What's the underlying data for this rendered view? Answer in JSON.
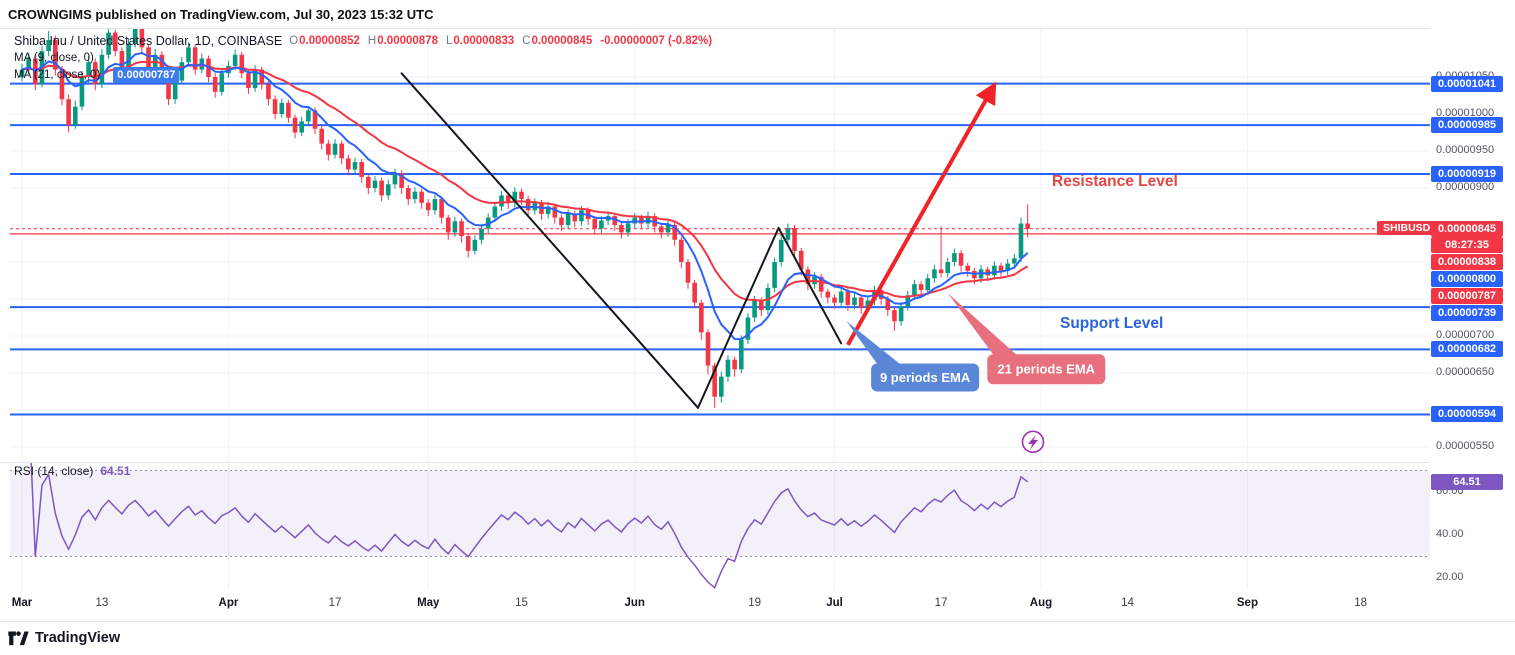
{
  "header": {
    "published_line": "CROWNGIMS published on TradingView.com, Jul 30, 2023 15:32 UTC",
    "symbol_line": {
      "title": "Shiba Inu / United States Dollar, 1D, COINBASE"
    },
    "ohlc": {
      "o_label": "O",
      "o": "0.00000852",
      "h_label": "H",
      "h": "0.00000878",
      "l_label": "L",
      "l": "0.00000833",
      "c_label": "C",
      "c": "0.00000845",
      "change": "-0.00000007 (-0.82%)"
    },
    "indicators": [
      {
        "label": "MA (9, close, 0)",
        "value": ""
      },
      {
        "label": "MA (21, close, 0)",
        "value": "0.00000787"
      }
    ]
  },
  "price_axis": {
    "currency_button": "USD",
    "plain_labels": [
      {
        "text": "0.00001050",
        "price": 1050
      },
      {
        "text": "0.00001000",
        "price": 1000
      },
      {
        "text": "0.00000950",
        "price": 950
      },
      {
        "text": "0.00000900",
        "price": 900
      },
      {
        "text": "0.00000700",
        "price": 700
      },
      {
        "text": "0.00000650",
        "price": 650
      },
      {
        "text": "0.00000550",
        "price": 550
      }
    ],
    "badges": [
      {
        "text": "0.00001041",
        "price": 1041,
        "color": "blue"
      },
      {
        "text": "0.00000985",
        "price": 985,
        "color": "blue"
      },
      {
        "text": "0.00000919",
        "price": 919,
        "color": "blue"
      },
      {
        "text": "0.00000838",
        "price": 838,
        "color": "red"
      },
      {
        "text": "0.00000800",
        "price": 800,
        "color": "blue"
      },
      {
        "text": "0.00000787",
        "price": 787,
        "color": "red"
      },
      {
        "text": "0.00000739",
        "price": 739,
        "color": "blue"
      },
      {
        "text": "0.00000682",
        "price": 682,
        "color": "blue"
      },
      {
        "text": "0.00000594",
        "price": 594,
        "color": "blue"
      }
    ],
    "last_price": {
      "tag": "SHIBUSD",
      "text": "0.00000845",
      "countdown": "08:27:35"
    }
  },
  "time_axis": {
    "labels": [
      {
        "text": "Mar",
        "index": 0,
        "major": true
      },
      {
        "text": "13",
        "index": 12
      },
      {
        "text": "Apr",
        "index": 31,
        "major": true
      },
      {
        "text": "17",
        "index": 47
      },
      {
        "text": "May",
        "index": 61,
        "major": true
      },
      {
        "text": "15",
        "index": 75
      },
      {
        "text": "Jun",
        "index": 92,
        "major": true
      },
      {
        "text": "19",
        "index": 110
      },
      {
        "text": "Jul",
        "index": 122,
        "major": true
      },
      {
        "text": "17",
        "index": 138
      },
      {
        "text": "Aug",
        "index": 153,
        "major": true
      },
      {
        "text": "14",
        "index": 166
      },
      {
        "text": "Sep",
        "index": 184,
        "major": true
      },
      {
        "text": "18",
        "index": 201
      }
    ]
  },
  "chart_data": {
    "type": "candlestick",
    "symbol": "SHIBUSD",
    "timeframe": "1D",
    "exchange": "COINBASE",
    "price_unit": "values are USD x 1e-8",
    "ylim_e8": [
      532,
      1116
    ],
    "grid_prices": [
      1050,
      1000,
      950,
      900,
      850,
      800,
      750,
      700,
      650,
      600,
      550
    ],
    "month_grid_indices": [
      0,
      31,
      61,
      92,
      122,
      153,
      184
    ],
    "levels_blue": [
      1041,
      985,
      919,
      739,
      682,
      594
    ],
    "red_level": 838,
    "last_price": 845,
    "candles": [
      [
        1050,
        1068,
        1044,
        1060
      ],
      [
        1060,
        1082,
        1054,
        1075
      ],
      [
        1075,
        1080,
        1032,
        1040
      ],
      [
        1040,
        1092,
        1036,
        1085
      ],
      [
        1085,
        1112,
        1078,
        1100
      ],
      [
        1100,
        1106,
        1052,
        1060
      ],
      [
        1060,
        1065,
        1012,
        1020
      ],
      [
        1020,
        1026,
        975,
        985
      ],
      [
        985,
        1018,
        980,
        1010
      ],
      [
        1010,
        1058,
        1005,
        1050
      ],
      [
        1050,
        1078,
        1042,
        1070
      ],
      [
        1070,
        1075,
        1032,
        1040
      ],
      [
        1040,
        1088,
        1035,
        1080
      ],
      [
        1080,
        1118,
        1074,
        1110
      ],
      [
        1110,
        1114,
        1078,
        1085
      ],
      [
        1085,
        1090,
        1052,
        1060
      ],
      [
        1060,
        1102,
        1055,
        1095
      ],
      [
        1095,
        1122,
        1090,
        1115
      ],
      [
        1115,
        1119,
        1082,
        1090
      ],
      [
        1090,
        1094,
        1052,
        1060
      ],
      [
        1060,
        1088,
        1054,
        1080
      ],
      [
        1080,
        1085,
        1042,
        1050
      ],
      [
        1050,
        1056,
        1012,
        1020
      ],
      [
        1020,
        1052,
        1014,
        1045
      ],
      [
        1045,
        1077,
        1040,
        1070
      ],
      [
        1070,
        1097,
        1064,
        1090
      ],
      [
        1090,
        1094,
        1053,
        1060
      ],
      [
        1060,
        1082,
        1055,
        1075
      ],
      [
        1075,
        1079,
        1043,
        1050
      ],
      [
        1050,
        1055,
        1022,
        1030
      ],
      [
        1030,
        1062,
        1025,
        1055
      ],
      [
        1055,
        1072,
        1049,
        1065
      ],
      [
        1065,
        1087,
        1059,
        1080
      ],
      [
        1080,
        1084,
        1048,
        1055
      ],
      [
        1055,
        1060,
        1027,
        1035
      ],
      [
        1035,
        1066,
        1030,
        1060
      ],
      [
        1060,
        1064,
        1033,
        1040
      ],
      [
        1040,
        1045,
        1012,
        1020
      ],
      [
        1020,
        1025,
        993,
        1000
      ],
      [
        1000,
        1021,
        995,
        1015
      ],
      [
        1015,
        1019,
        988,
        995
      ],
      [
        995,
        999,
        967,
        975
      ],
      [
        975,
        996,
        970,
        990
      ],
      [
        990,
        1011,
        985,
        1005
      ],
      [
        1005,
        1009,
        973,
        980
      ],
      [
        980,
        984,
        952,
        960
      ],
      [
        960,
        965,
        937,
        945
      ],
      [
        945,
        966,
        940,
        960
      ],
      [
        960,
        964,
        932,
        940
      ],
      [
        940,
        945,
        917,
        925
      ],
      [
        925,
        941,
        919,
        935
      ],
      [
        935,
        939,
        907,
        915
      ],
      [
        915,
        919,
        892,
        900
      ],
      [
        900,
        916,
        894,
        910
      ],
      [
        910,
        914,
        882,
        890
      ],
      [
        890,
        911,
        884,
        905
      ],
      [
        905,
        926,
        899,
        920
      ],
      [
        920,
        924,
        892,
        900
      ],
      [
        900,
        904,
        877,
        885
      ],
      [
        885,
        901,
        879,
        895
      ],
      [
        895,
        899,
        872,
        880
      ],
      [
        880,
        885,
        862,
        870
      ],
      [
        870,
        891,
        864,
        885
      ],
      [
        885,
        889,
        852,
        860
      ],
      [
        860,
        864,
        830,
        840
      ],
      [
        840,
        861,
        834,
        855
      ],
      [
        855,
        859,
        826,
        835
      ],
      [
        835,
        839,
        806,
        815
      ],
      [
        815,
        836,
        810,
        830
      ],
      [
        830,
        851,
        824,
        845
      ],
      [
        845,
        866,
        839,
        860
      ],
      [
        860,
        881,
        854,
        875
      ],
      [
        875,
        896,
        869,
        890
      ],
      [
        890,
        894,
        872,
        880
      ],
      [
        880,
        901,
        874,
        895
      ],
      [
        895,
        899,
        877,
        885
      ],
      [
        885,
        889,
        862,
        870
      ],
      [
        870,
        886,
        864,
        880
      ],
      [
        880,
        884,
        857,
        865
      ],
      [
        865,
        881,
        859,
        875
      ],
      [
        875,
        879,
        852,
        860
      ],
      [
        860,
        864,
        842,
        850
      ],
      [
        850,
        871,
        844,
        865
      ],
      [
        865,
        869,
        847,
        855
      ],
      [
        855,
        876,
        849,
        870
      ],
      [
        870,
        874,
        850,
        858
      ],
      [
        858,
        862,
        837,
        845
      ],
      [
        845,
        862,
        839,
        856
      ],
      [
        856,
        868,
        850,
        862
      ],
      [
        862,
        866,
        842,
        850
      ],
      [
        850,
        854,
        832,
        840
      ],
      [
        840,
        858,
        834,
        852
      ],
      [
        852,
        866,
        846,
        860
      ],
      [
        860,
        864,
        844,
        852
      ],
      [
        852,
        868,
        846,
        862
      ],
      [
        862,
        866,
        840,
        848
      ],
      [
        848,
        852,
        832,
        840
      ],
      [
        840,
        856,
        834,
        850
      ],
      [
        850,
        854,
        822,
        830
      ],
      [
        830,
        834,
        792,
        800
      ],
      [
        800,
        804,
        764,
        772
      ],
      [
        772,
        776,
        737,
        745
      ],
      [
        745,
        749,
        695,
        705
      ],
      [
        705,
        709,
        648,
        660
      ],
      [
        660,
        664,
        603,
        618
      ],
      [
        618,
        652,
        610,
        645
      ],
      [
        645,
        674,
        638,
        668
      ],
      [
        668,
        672,
        645,
        655
      ],
      [
        655,
        701,
        650,
        695
      ],
      [
        695,
        731,
        689,
        725
      ],
      [
        725,
        754,
        719,
        748
      ],
      [
        748,
        752,
        727,
        735
      ],
      [
        735,
        771,
        729,
        765
      ],
      [
        765,
        806,
        759,
        800
      ],
      [
        800,
        838,
        794,
        830
      ],
      [
        830,
        852,
        824,
        846
      ],
      [
        846,
        850,
        807,
        815
      ],
      [
        815,
        819,
        782,
        790
      ],
      [
        790,
        794,
        762,
        770
      ],
      [
        770,
        786,
        764,
        780
      ],
      [
        780,
        784,
        752,
        760
      ],
      [
        760,
        764,
        744,
        752
      ],
      [
        752,
        756,
        737,
        745
      ],
      [
        745,
        766,
        739,
        760
      ],
      [
        760,
        764,
        734,
        742
      ],
      [
        742,
        758,
        736,
        752
      ],
      [
        752,
        756,
        730,
        738
      ],
      [
        738,
        754,
        732,
        748
      ],
      [
        748,
        768,
        742,
        762
      ],
      [
        762,
        766,
        742,
        750
      ],
      [
        750,
        754,
        727,
        735
      ],
      [
        735,
        739,
        707,
        720
      ],
      [
        720,
        746,
        714,
        740
      ],
      [
        740,
        761,
        734,
        755
      ],
      [
        755,
        776,
        749,
        770
      ],
      [
        770,
        774,
        754,
        762
      ],
      [
        762,
        784,
        756,
        778
      ],
      [
        778,
        796,
        772,
        790
      ],
      [
        790,
        848,
        779,
        785
      ],
      [
        785,
        806,
        779,
        800
      ],
      [
        800,
        818,
        794,
        812
      ],
      [
        812,
        816,
        787,
        795
      ],
      [
        795,
        799,
        780,
        788
      ],
      [
        788,
        792,
        770,
        778
      ],
      [
        778,
        796,
        772,
        790
      ],
      [
        790,
        794,
        774,
        782
      ],
      [
        782,
        801,
        776,
        795
      ],
      [
        795,
        799,
        780,
        788
      ],
      [
        788,
        804,
        782,
        798
      ],
      [
        798,
        811,
        792,
        805
      ],
      [
        805,
        860,
        800,
        852
      ],
      [
        852,
        878,
        833,
        845
      ]
    ],
    "ema": [
      {
        "period": 9,
        "color": "#2962ff"
      },
      {
        "period": 21,
        "color": "#f23645"
      }
    ],
    "rsi": {
      "label": "RSI (14, close)",
      "period": 14,
      "value": "64.51",
      "value_num": 64.51,
      "band": [
        30,
        70
      ],
      "axis_labels": [
        {
          "text": "60.00",
          "rsi": 60
        },
        {
          "text": "40.00",
          "rsi": 40
        },
        {
          "text": "20.00",
          "rsi": 20
        }
      ]
    },
    "annotations": {
      "resistance_label": {
        "text": "Resistance Level",
        "color": "#e04646"
      },
      "support_label": {
        "text": "Support Level",
        "color": "#2e62d9"
      },
      "ema9_callout": {
        "text": "9 periods EMA",
        "box_center": [
          135.6,
          644
        ],
        "tip": [
          123.8,
          720
        ],
        "width": 108,
        "height": 28
      },
      "ema21_callout": {
        "text": "21 periods EMA",
        "box_center": [
          153.8,
          655
        ],
        "tip": [
          139,
          758
        ],
        "width": 118,
        "height": 30
      },
      "trend_lines": [
        [
          57,
          1055,
          101.5,
          603
        ],
        [
          101.5,
          603,
          113.6,
          846
        ],
        [
          113.6,
          846,
          123,
          690
        ]
      ],
      "arrow": {
        "from": [
          124,
          688
        ],
        "to": [
          145.8,
          1036
        ]
      },
      "lightning_marker": {
        "pos": [
          151.8,
          557
        ]
      }
    }
  },
  "footer": {
    "brand": "TradingView"
  },
  "colors": {
    "up": "#089981",
    "down": "#f23645",
    "blue": "#2962ff",
    "red": "#f23645",
    "purple": "#7e57c2",
    "grid": "#f0f3fa",
    "black_line": "#16181d",
    "arrow": "#ef2429",
    "callout_blue": "#5b87d9",
    "callout_pink": "#e8707e",
    "lightning": "#9b30b5"
  }
}
